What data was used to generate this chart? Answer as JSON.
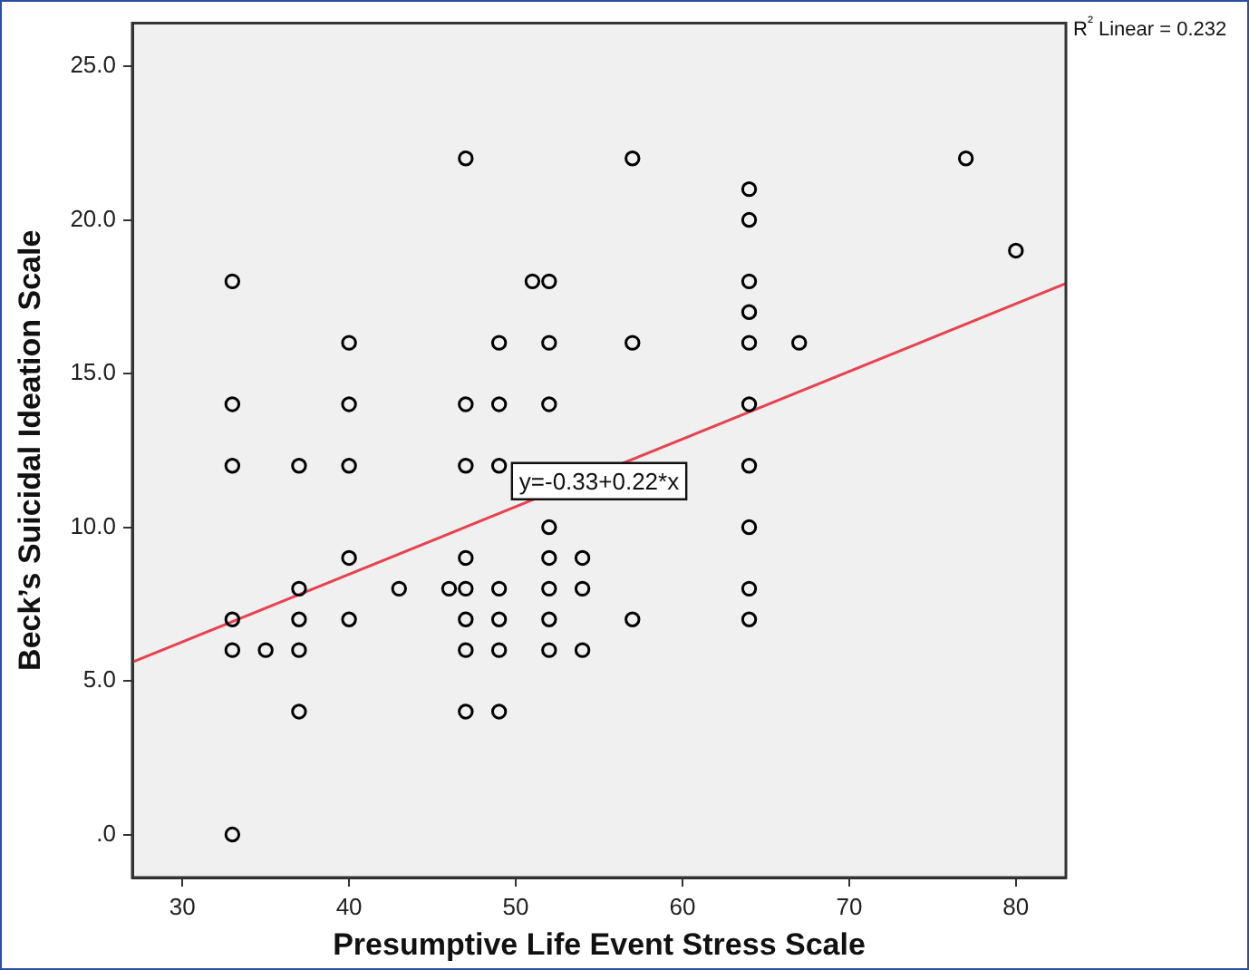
{
  "chart_data": {
    "type": "scatter",
    "xlabel": "Presumptive Life Event Stress Scale",
    "ylabel": "Beck’s Suicidal Ideation Scale",
    "xlim": [
      27,
      83
    ],
    "xticks": [
      30,
      40,
      50,
      60,
      70,
      80
    ],
    "ylim": [
      -1.4,
      26.4
    ],
    "yticks": [
      {
        "value": 0,
        "label": ".0"
      },
      {
        "value": 5,
        "label": "5.0"
      },
      {
        "value": 10,
        "label": "10.0"
      },
      {
        "value": 15,
        "label": "15.0"
      },
      {
        "value": 20,
        "label": "20.0"
      },
      {
        "value": 25,
        "label": "25.0"
      }
    ],
    "grid": false,
    "legend": false,
    "marker": "circle",
    "series": [
      {
        "color": "#000000",
        "x": [
          47,
          33,
          51,
          52,
          40,
          49,
          52,
          33,
          40,
          47,
          49,
          52,
          33,
          37,
          40,
          47,
          49,
          52,
          40,
          47,
          52,
          37,
          43,
          46,
          47,
          49,
          52,
          33,
          37,
          40,
          47,
          49,
          52,
          33,
          35,
          37,
          47,
          49,
          52,
          37,
          47,
          49,
          33,
          57,
          77,
          64,
          64,
          80,
          64,
          64,
          57,
          64,
          67,
          64,
          64,
          64,
          54,
          54,
          64,
          57,
          64,
          54
        ],
        "values": [
          22,
          18,
          18,
          18,
          16,
          16,
          16,
          14,
          14,
          14,
          14,
          14,
          12,
          12,
          12,
          12,
          12,
          10,
          9,
          9,
          9,
          8,
          8,
          8,
          8,
          8,
          8,
          7,
          7,
          7,
          7,
          7,
          7,
          6,
          6,
          6,
          6,
          6,
          6,
          4,
          4,
          4,
          0,
          22,
          22,
          21,
          20,
          19,
          18,
          17,
          16,
          16,
          16,
          14,
          12,
          10,
          9,
          8,
          8,
          7,
          7,
          6
        ]
      },
      {
        "type": "line",
        "color": "#e8424f",
        "marker": "none",
        "x": [
          27,
          83
        ],
        "values": [
          5.61,
          17.93
        ]
      }
    ],
    "annotations": [
      "R² Linear = 0.232",
      {
        "text": "y=-0.33+0.22*x",
        "x": 55,
        "y": 11.5
      }
    ]
  }
}
